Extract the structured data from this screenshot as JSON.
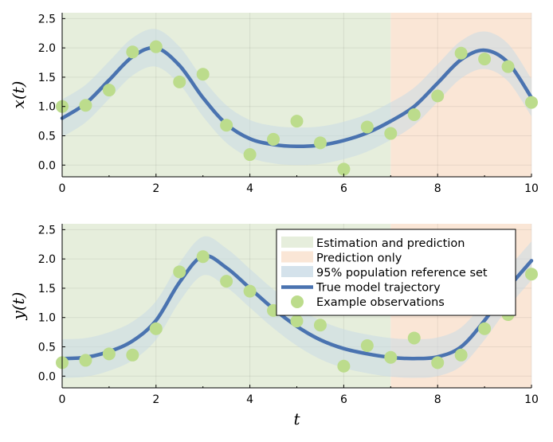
{
  "chart_data": [
    {
      "type": "line",
      "ylabel": "x(t)",
      "xlabel": "",
      "xlim": [
        0,
        10
      ],
      "ylim": [
        -0.2,
        2.6
      ],
      "xticks": [
        "0",
        "2",
        "4",
        "6",
        "8",
        "10"
      ],
      "yticks": [
        "0.0",
        "0.5",
        "1.0",
        "1.5",
        "2.0",
        "2.5"
      ],
      "regions": [
        {
          "name": "Estimation and prediction",
          "from": 0,
          "to": 7,
          "color": "#e6eedc"
        },
        {
          "name": "Prediction only",
          "from": 7,
          "to": 10,
          "color": "#fae6d6"
        }
      ],
      "true_trajectory": {
        "name": "True model trajectory",
        "color": "#4a73b0",
        "x": [
          0,
          0.5,
          1,
          1.5,
          2,
          2.5,
          3,
          3.5,
          4,
          4.5,
          5,
          5.5,
          6,
          6.5,
          7,
          7.5,
          8,
          8.5,
          9,
          9.5,
          10
        ],
        "y": [
          0.8,
          1.05,
          1.45,
          1.85,
          2.0,
          1.7,
          1.15,
          0.7,
          0.45,
          0.35,
          0.32,
          0.34,
          0.42,
          0.55,
          0.75,
          1.0,
          1.4,
          1.8,
          1.96,
          1.75,
          1.15
        ]
      },
      "band": {
        "name": "95% population reference set",
        "color": "#c9dbe6",
        "halfwidth": 0.32
      },
      "observations": {
        "name": "Example observations",
        "color": "#bcdc8c",
        "x": [
          0,
          0.5,
          1,
          1.5,
          2,
          2.5,
          3,
          3.5,
          4,
          4.5,
          5,
          5.5,
          6,
          6.5,
          7,
          7.5,
          8,
          8.5,
          9,
          9.5,
          10
        ],
        "y": [
          1.0,
          1.02,
          1.28,
          1.93,
          2.02,
          1.42,
          1.55,
          0.68,
          0.18,
          0.44,
          0.75,
          0.38,
          -0.07,
          0.65,
          0.54,
          0.86,
          1.18,
          1.91,
          1.81,
          1.68,
          1.07
        ]
      }
    },
    {
      "type": "line",
      "ylabel": "y(t)",
      "xlabel": "t",
      "xlim": [
        0,
        10
      ],
      "ylim": [
        -0.2,
        2.6
      ],
      "xticks": [
        "0",
        "2",
        "4",
        "6",
        "8",
        "10"
      ],
      "yticks": [
        "0.0",
        "0.5",
        "1.0",
        "1.5",
        "2.0",
        "2.5"
      ],
      "regions": [
        {
          "name": "Estimation and prediction",
          "from": 0,
          "to": 7,
          "color": "#e6eedc"
        },
        {
          "name": "Prediction only",
          "from": 7,
          "to": 10,
          "color": "#fae6d6"
        }
      ],
      "true_trajectory": {
        "name": "True model trajectory",
        "color": "#4a73b0",
        "x": [
          0,
          0.5,
          1,
          1.5,
          2,
          2.5,
          3,
          3.5,
          4,
          4.5,
          5,
          5.5,
          6,
          6.5,
          7,
          7.5,
          8,
          8.5,
          9,
          9.5,
          10
        ],
        "y": [
          0.3,
          0.32,
          0.42,
          0.6,
          0.95,
          1.6,
          2.05,
          1.85,
          1.5,
          1.15,
          0.85,
          0.62,
          0.47,
          0.38,
          0.32,
          0.3,
          0.33,
          0.5,
          0.95,
          1.5,
          1.97
        ]
      },
      "band": {
        "name": "95% population reference set",
        "color": "#c9dbe6",
        "halfwidth": 0.33
      },
      "observations": {
        "name": "Example observations",
        "color": "#bcdc8c",
        "x": [
          0,
          0.5,
          1,
          1.5,
          2,
          2.5,
          3,
          3.5,
          4,
          4.5,
          5,
          5.5,
          6,
          6.5,
          7,
          7.5,
          8,
          8.5,
          9,
          9.5,
          10
        ],
        "y": [
          0.23,
          0.27,
          0.38,
          0.36,
          0.81,
          1.78,
          2.04,
          1.62,
          1.45,
          1.12,
          0.94,
          0.87,
          0.17,
          0.52,
          0.32,
          0.65,
          0.23,
          0.36,
          0.81,
          1.05,
          1.74
        ]
      },
      "legend": {
        "placement": "top-right",
        "entries": [
          "Estimation and prediction",
          "Prediction only",
          "95% population reference set",
          "True model trajectory",
          "Example observations"
        ]
      }
    }
  ]
}
